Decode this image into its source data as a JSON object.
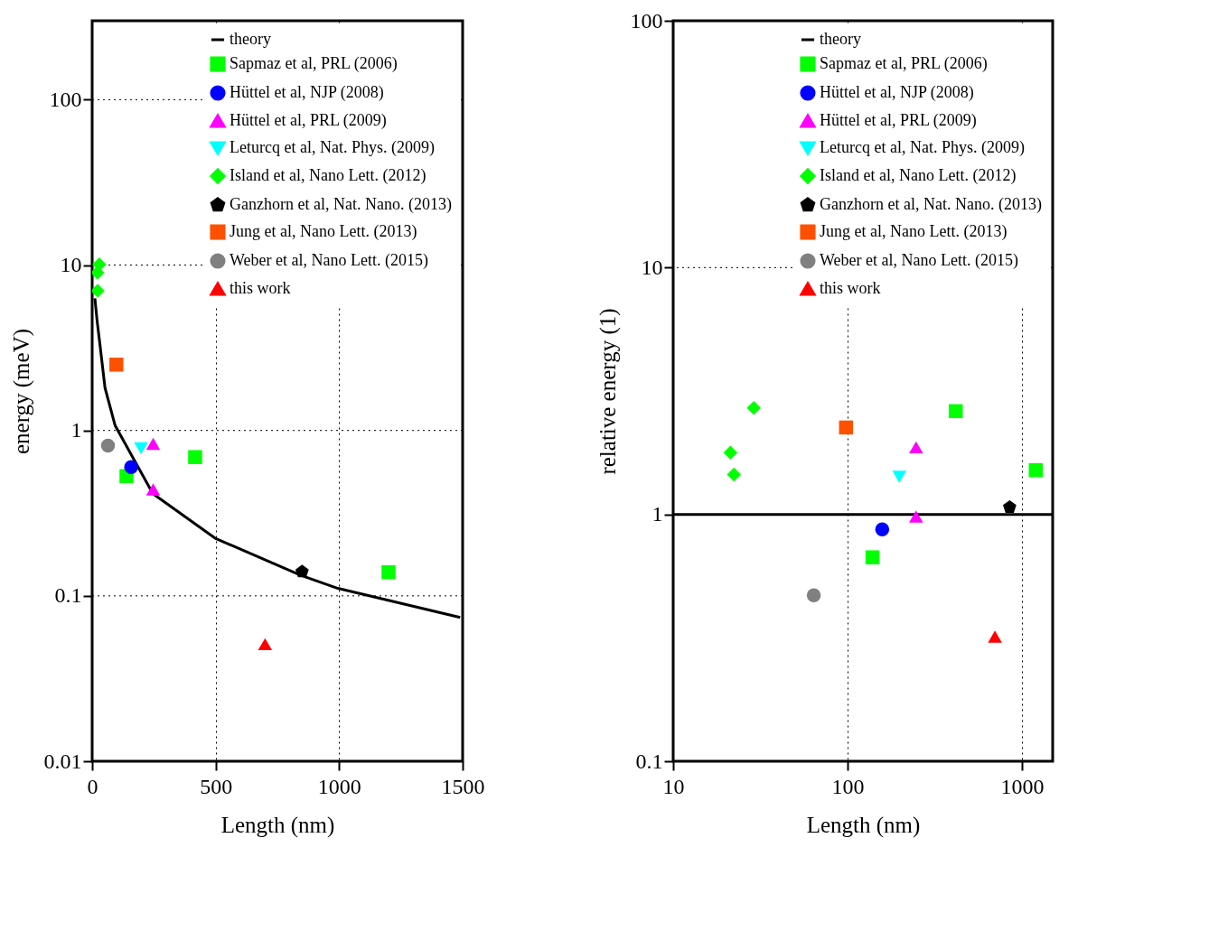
{
  "chart_data": [
    {
      "type": "scatter",
      "xlabel": "Length (nm)",
      "ylabel": "energy (meV)",
      "xlim": [
        0,
        1500
      ],
      "xticks": [
        0,
        500,
        1000,
        1500
      ],
      "ylim": [
        0.01,
        300
      ],
      "yticks": [
        0.01,
        0.1,
        1,
        10,
        100
      ],
      "log": "y",
      "grid": true,
      "legend": "top right",
      "series": [
        {
          "name": "theory",
          "type": "line",
          "color": "#000000",
          "marker": "none",
          "x": [
            11,
            20,
            31.6,
            52,
            93,
            246,
            498,
            845,
            995,
            1490
          ],
          "values": [
            6.3,
            4.6,
            3.3,
            1.81,
            1.07,
            0.414,
            0.223,
            0.133,
            0.111,
            0.074
          ]
        },
        {
          "name": "Sapmaz et al, PRL (2006)",
          "color": "#00ff00",
          "marker": "square",
          "x": [
            139,
            417,
            1200
          ],
          "values": [
            0.53,
            0.69,
            0.139
          ]
        },
        {
          "name": "Hüttel et al, NJP (2008)",
          "color": "#0000ff",
          "marker": "circle",
          "x": [
            158
          ],
          "values": [
            0.6
          ]
        },
        {
          "name": "Hüttel et al, PRL (2009)",
          "color": "#ff00ff",
          "marker": "triangle",
          "x": [
            247,
            247
          ],
          "values": [
            0.83,
            0.44
          ]
        },
        {
          "name": "Leturcq et al, Nat. Phys. (2009)",
          "color": "#00ffff",
          "marker": "triangle-down",
          "x": [
            198
          ],
          "values": [
            0.78
          ]
        },
        {
          "name": "Island et al, Nano Lett. (2012)",
          "color": "#00ff00",
          "marker": "diamond",
          "x": [
            29,
            21.3,
            22.3
          ],
          "values": [
            10.1,
            9.0,
            7.0
          ]
        },
        {
          "name": "Ganzhorn et al, Nat. Nano. (2013)",
          "color": "#000000",
          "x": [
            850
          ],
          "values": [
            0.14
          ]
        },
        {
          "name": "Jung et al, Nano Lett. (2013)",
          "color": "#ff5000",
          "marker": "square",
          "x": [
            98
          ],
          "values": [
            2.5
          ]
        },
        {
          "name": "Weber et al, Nano Lett. (2015)",
          "color": "#808080",
          "marker": "circle",
          "x": [
            64
          ],
          "values": [
            0.81
          ]
        },
        {
          "name": "this work",
          "color": "#ff0000",
          "marker": "triangle",
          "x": [
            700
          ],
          "values": [
            0.051
          ]
        }
      ]
    },
    {
      "type": "scatter",
      "xlabel": "Length (nm)",
      "ylabel": "relative energy (1)",
      "xlim": [
        10,
        1500
      ],
      "xticks": [
        10,
        100,
        1000
      ],
      "ylim": [
        0.1,
        100
      ],
      "yticks": [
        0.1,
        1,
        10,
        100
      ],
      "log": "xy",
      "grid": true,
      "legend": "top right",
      "series": [
        {
          "name": "theory",
          "type": "line",
          "color": "#000000",
          "marker": "none",
          "x": [
            10,
            1500
          ],
          "values": [
            1,
            1
          ]
        },
        {
          "name": "Sapmaz et al, PRL (2006)",
          "color": "#00ff00",
          "marker": "square",
          "x": [
            139,
            417,
            1200
          ],
          "values": [
            0.67,
            2.62,
            1.51
          ]
        },
        {
          "name": "Hüttel et al, NJP (2008)",
          "color": "#0000ff",
          "marker": "circle",
          "x": [
            158
          ],
          "values": [
            0.87
          ]
        },
        {
          "name": "Hüttel et al, PRL (2009)",
          "color": "#ff00ff",
          "marker": "triangle",
          "x": [
            247,
            247
          ],
          "values": [
            1.87,
            0.98
          ]
        },
        {
          "name": "Leturcq et al, Nat. Phys. (2009)",
          "color": "#00ffff",
          "marker": "triangle-down",
          "x": [
            198
          ],
          "values": [
            1.42
          ]
        },
        {
          "name": "Island et al, Nano Lett. (2012)",
          "color": "#00ff00",
          "marker": "diamond",
          "x": [
            29,
            21.3,
            22.3
          ],
          "values": [
            2.7,
            1.78,
            1.45
          ]
        },
        {
          "name": "Ganzhorn et al, Nat. Nano. (2013)",
          "color": "#000000",
          "x": [
            850
          ],
          "values": [
            1.07
          ]
        },
        {
          "name": "Jung et al, Nano Lett. (2013)",
          "color": "#ff5000",
          "marker": "square",
          "x": [
            98
          ],
          "values": [
            2.25
          ]
        },
        {
          "name": "Weber et al, Nano Lett. (2015)",
          "color": "#808080",
          "marker": "circle",
          "x": [
            64
          ],
          "values": [
            0.47
          ]
        },
        {
          "name": "this work",
          "color": "#ff0000",
          "marker": "triangle",
          "x": [
            700
          ],
          "values": [
            0.32
          ]
        }
      ]
    }
  ]
}
